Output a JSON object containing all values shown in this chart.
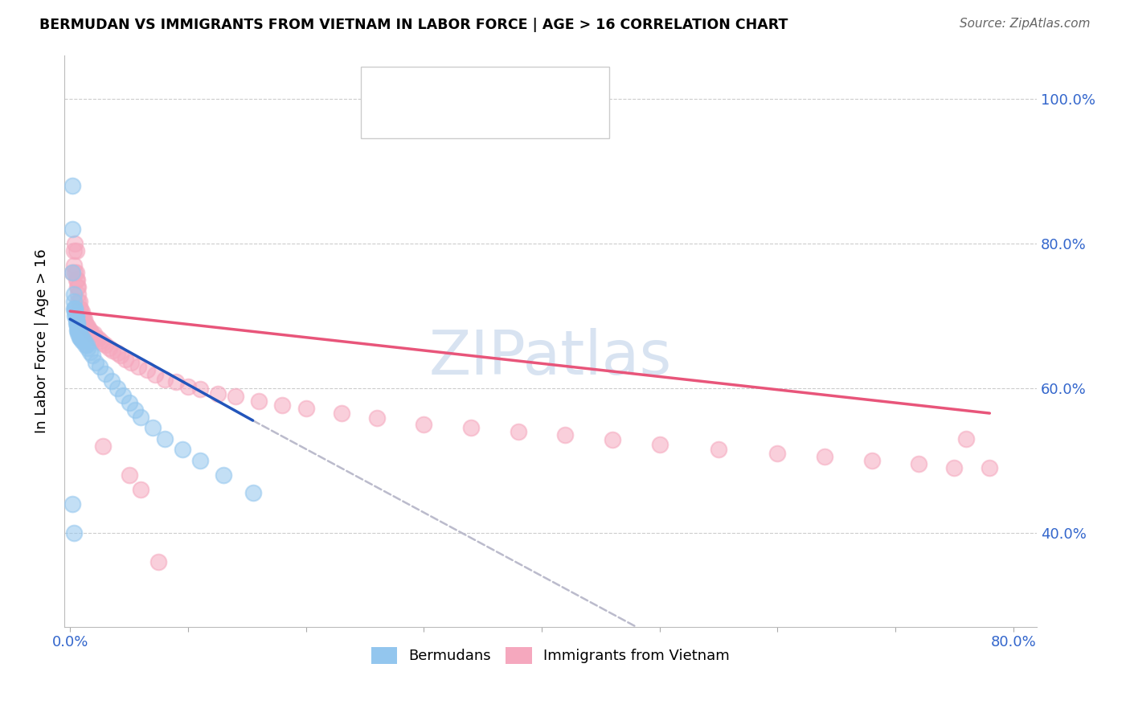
{
  "title": "BERMUDAN VS IMMIGRANTS FROM VIETNAM IN LABOR FORCE | AGE > 16 CORRELATION CHART",
  "source": "Source: ZipAtlas.com",
  "ylabel": "In Labor Force | Age > 16",
  "xlim": [
    -0.005,
    0.82
  ],
  "ylim": [
    0.27,
    1.06
  ],
  "x_ticks": [
    0.0,
    0.1,
    0.2,
    0.3,
    0.4,
    0.5,
    0.6,
    0.7,
    0.8
  ],
  "x_tick_labels": [
    "0.0%",
    "",
    "",
    "",
    "",
    "",
    "",
    "",
    "80.0%"
  ],
  "y_tick_right": [
    0.4,
    0.6,
    0.8,
    1.0
  ],
  "y_tick_right_labels": [
    "40.0%",
    "60.0%",
    "80.0%",
    "100.0%"
  ],
  "blue_color": "#93C6EE",
  "pink_color": "#F5A8BE",
  "blue_line_color": "#2255BB",
  "pink_line_color": "#E8557A",
  "grey_line_color": "#BBBBCC",
  "watermark": "ZIPatlas",
  "blue_line_x0": 0.0,
  "blue_line_y0": 0.695,
  "blue_line_x1": 0.155,
  "blue_line_y1": 0.555,
  "grey_line_x0": 0.155,
  "grey_line_y0": 0.555,
  "grey_line_x1": 0.48,
  "grey_line_y1": 0.27,
  "pink_line_x0": 0.0,
  "pink_line_y0": 0.706,
  "pink_line_x1": 0.78,
  "pink_line_y1": 0.565,
  "blue_scatter_x": [
    0.002,
    0.002,
    0.002,
    0.003,
    0.003,
    0.003,
    0.004,
    0.004,
    0.004,
    0.004,
    0.005,
    0.005,
    0.005,
    0.005,
    0.006,
    0.006,
    0.006,
    0.006,
    0.007,
    0.007,
    0.007,
    0.008,
    0.008,
    0.008,
    0.009,
    0.009,
    0.01,
    0.01,
    0.011,
    0.012,
    0.013,
    0.014,
    0.015,
    0.017,
    0.019,
    0.022,
    0.025,
    0.03,
    0.035,
    0.04,
    0.045,
    0.05,
    0.055,
    0.06,
    0.07,
    0.08,
    0.095,
    0.11,
    0.13,
    0.155,
    0.002,
    0.003
  ],
  "blue_scatter_y": [
    0.88,
    0.82,
    0.76,
    0.73,
    0.72,
    0.71,
    0.71,
    0.71,
    0.705,
    0.7,
    0.7,
    0.7,
    0.695,
    0.69,
    0.69,
    0.69,
    0.685,
    0.68,
    0.68,
    0.68,
    0.675,
    0.675,
    0.675,
    0.67,
    0.67,
    0.67,
    0.67,
    0.665,
    0.665,
    0.665,
    0.66,
    0.66,
    0.655,
    0.65,
    0.645,
    0.635,
    0.63,
    0.62,
    0.61,
    0.6,
    0.59,
    0.58,
    0.57,
    0.56,
    0.545,
    0.53,
    0.515,
    0.5,
    0.48,
    0.455,
    0.44,
    0.4
  ],
  "pink_scatter_x": [
    0.002,
    0.003,
    0.003,
    0.004,
    0.004,
    0.005,
    0.005,
    0.005,
    0.006,
    0.006,
    0.007,
    0.007,
    0.007,
    0.008,
    0.008,
    0.009,
    0.009,
    0.01,
    0.01,
    0.011,
    0.011,
    0.012,
    0.012,
    0.013,
    0.013,
    0.014,
    0.015,
    0.016,
    0.017,
    0.018,
    0.02,
    0.022,
    0.024,
    0.026,
    0.028,
    0.03,
    0.033,
    0.036,
    0.04,
    0.043,
    0.047,
    0.052,
    0.058,
    0.065,
    0.072,
    0.08,
    0.09,
    0.1,
    0.11,
    0.125,
    0.14,
    0.16,
    0.18,
    0.2,
    0.23,
    0.26,
    0.3,
    0.34,
    0.38,
    0.42,
    0.46,
    0.5,
    0.55,
    0.6,
    0.64,
    0.68,
    0.72,
    0.75,
    0.76,
    0.78,
    0.028,
    0.05,
    0.06,
    0.075
  ],
  "pink_scatter_y": [
    0.76,
    0.79,
    0.77,
    0.8,
    0.76,
    0.79,
    0.76,
    0.75,
    0.75,
    0.74,
    0.74,
    0.73,
    0.72,
    0.72,
    0.71,
    0.71,
    0.7,
    0.705,
    0.695,
    0.7,
    0.695,
    0.695,
    0.69,
    0.69,
    0.685,
    0.685,
    0.685,
    0.68,
    0.68,
    0.675,
    0.675,
    0.67,
    0.668,
    0.665,
    0.662,
    0.66,
    0.655,
    0.652,
    0.648,
    0.645,
    0.64,
    0.635,
    0.63,
    0.625,
    0.618,
    0.612,
    0.608,
    0.602,
    0.598,
    0.592,
    0.588,
    0.582,
    0.576,
    0.572,
    0.565,
    0.558,
    0.55,
    0.545,
    0.54,
    0.535,
    0.528,
    0.522,
    0.515,
    0.51,
    0.505,
    0.5,
    0.495,
    0.49,
    0.53,
    0.49,
    0.52,
    0.48,
    0.46,
    0.36
  ],
  "background_color": "#FFFFFF",
  "grid_color": "#CCCCCC"
}
